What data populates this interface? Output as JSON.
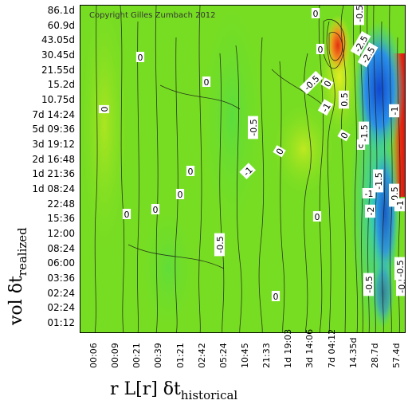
{
  "chart_data": {
    "type": "heatmap",
    "copyright": "Copyright Gilles Zumbach 2012",
    "x_tick_labels": [
      "00:06",
      "00:09",
      "00:21",
      "00:39",
      "01:21",
      "02:42",
      "05:24",
      "10:45",
      "21:33",
      "1d 19:03",
      "3d 14:06",
      "7d 04:12",
      "14.35d",
      "28.7d",
      "57.4d"
    ],
    "y_tick_labels": [
      "86.1d",
      "60.9d",
      "43.05d",
      "30.45d",
      "21.55d",
      "15.2d",
      "10.75d",
      "7d 14:24",
      "5d 09:36",
      "3d 19:12",
      "2d 16:48",
      "1d 21:36",
      "1d 08:24",
      "22:48",
      "15:36",
      "12:00",
      "08:24",
      "06:00",
      "03:36",
      "02:24",
      "02:24",
      "01:12"
    ],
    "y_title": {
      "main": "vol δt",
      "sub": "realized"
    },
    "x_title": {
      "main": "r L[r] δt",
      "sub": "historical"
    },
    "contour_labels": [
      "0",
      "0",
      "0",
      "0",
      "0",
      "0",
      "0",
      "0",
      "0",
      "0",
      "0",
      "0",
      "0",
      "0",
      "0",
      "0.5",
      "-0.5",
      "-0.5",
      "-0.5",
      "-0.5",
      "-0.5",
      "-1",
      "-1",
      "-1",
      "-1",
      "-1.5",
      "-1.5",
      "-2",
      "-2.5",
      "-2.5",
      "-0.5",
      "-0.5",
      "-1",
      "-0.5"
    ],
    "colors": {
      "green": "#77dd22",
      "yellow": "#ddee22",
      "orange": "#f08020",
      "red": "#e02010",
      "cyan": "#22d0c8",
      "blue": "#1460d8"
    }
  }
}
